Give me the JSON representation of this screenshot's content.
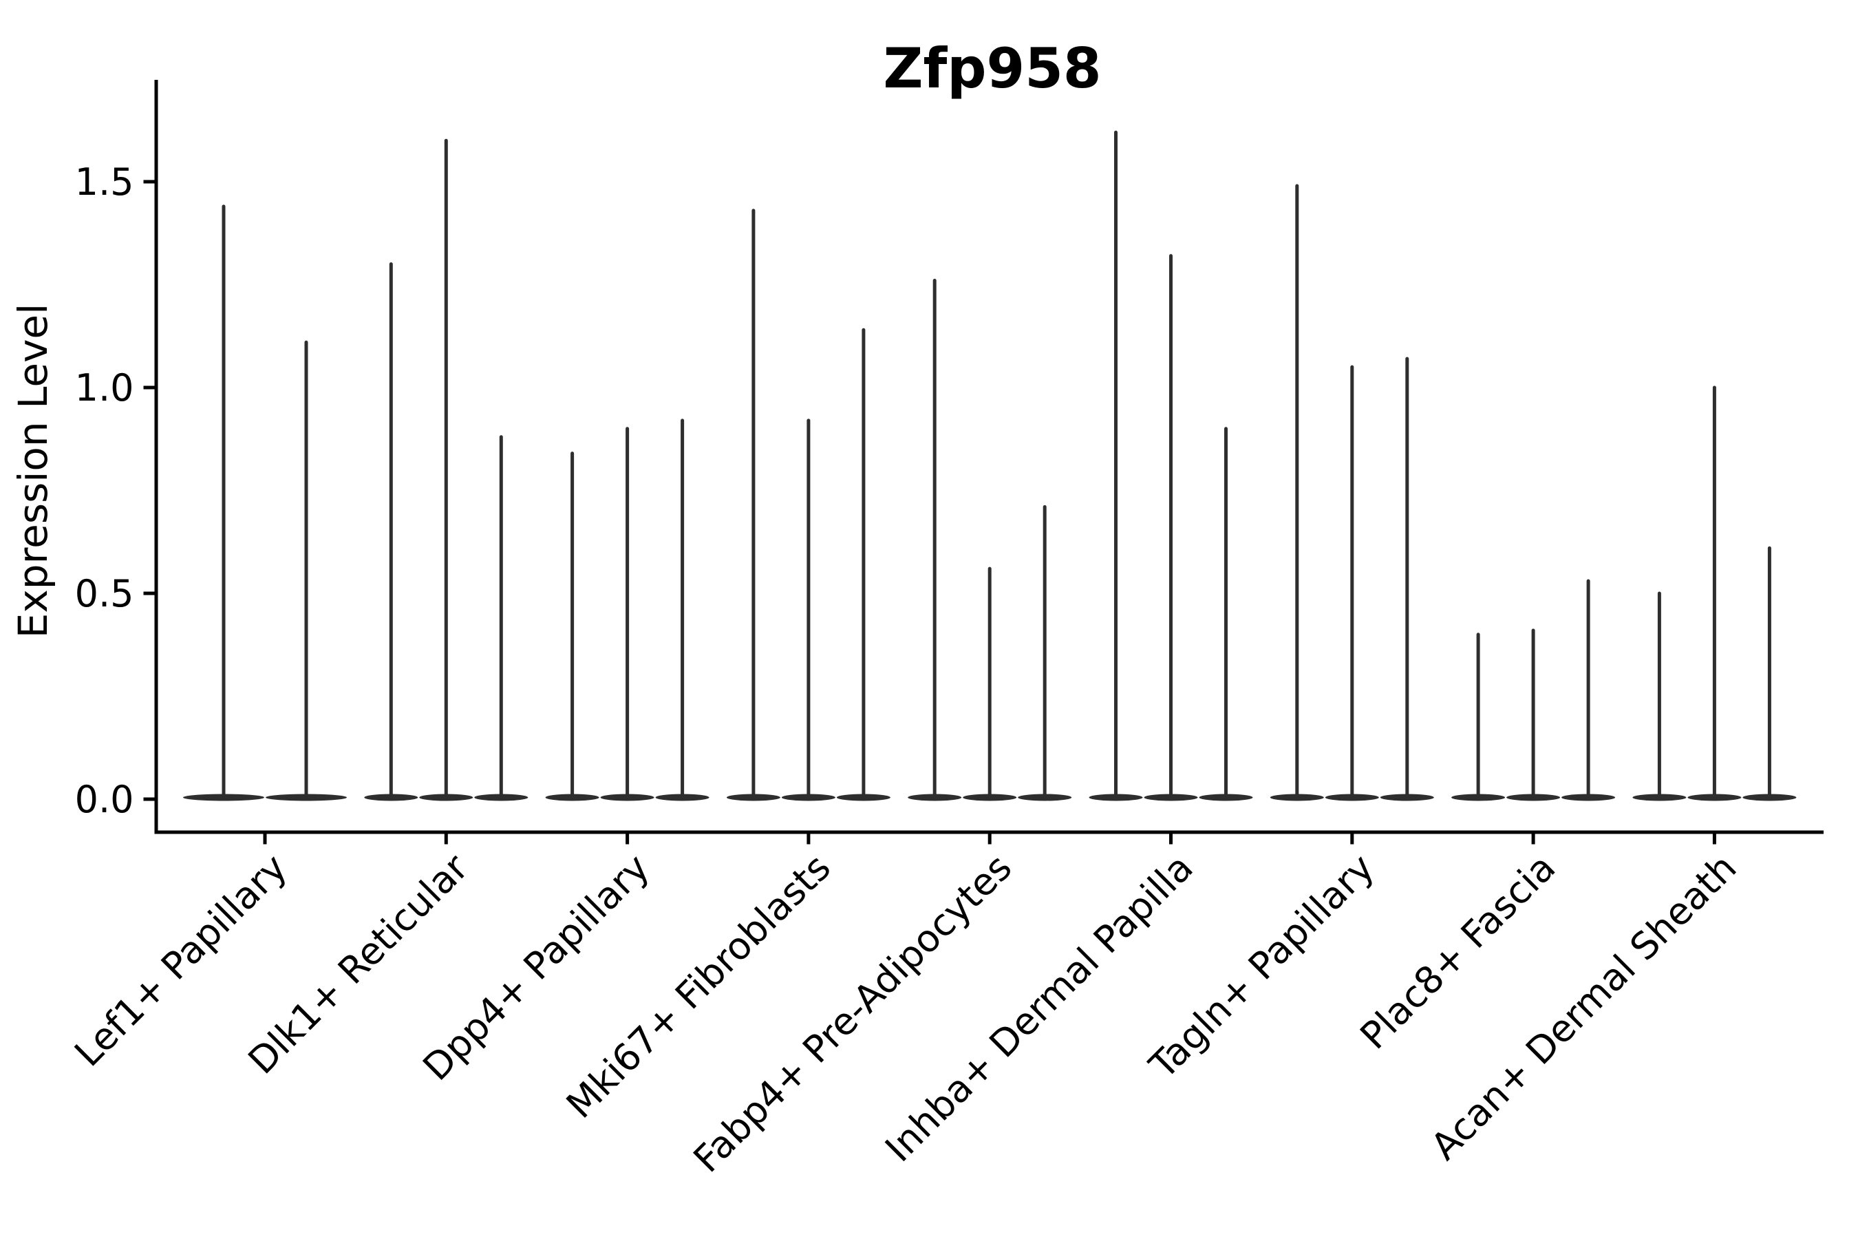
{
  "chart_data": {
    "type": "violin",
    "title": "Zfp958",
    "xlabel": "",
    "ylabel": "Expression Level",
    "yticks": [
      "0.0",
      "0.5",
      "1.0",
      "1.5"
    ],
    "ytick_values": [
      0.0,
      0.5,
      1.0,
      1.5
    ],
    "ylim": [
      0.0,
      1.75
    ],
    "grid": false,
    "legend": "none",
    "categories": [
      "Lef1+ Papillary",
      "Dlk1+ Reticular",
      "Dpp4+ Papillary",
      "Mki67+ Fibroblasts",
      "Fabp4+ Pre-Adipocytes",
      "Inhba+ Dermal Papilla",
      "Tagln+ Papillary",
      "Plac8+ Fascia",
      "Acan+ Dermal Sheath"
    ],
    "groups": [
      {
        "category": "Lef1+ Papillary",
        "violin_maxes": [
          1.44,
          1.11
        ]
      },
      {
        "category": "Dlk1+ Reticular",
        "violin_maxes": [
          1.3,
          1.6,
          0.88
        ]
      },
      {
        "category": "Dpp4+ Papillary",
        "violin_maxes": [
          0.84,
          0.9,
          0.92
        ]
      },
      {
        "category": "Mki67+ Fibroblasts",
        "violin_maxes": [
          1.43,
          0.92,
          1.14
        ]
      },
      {
        "category": "Fabp4+ Pre-Adipocytes",
        "violin_maxes": [
          1.26,
          0.56,
          0.71
        ]
      },
      {
        "category": "Inhba+ Dermal Papilla",
        "violin_maxes": [
          1.62,
          1.32,
          0.9
        ]
      },
      {
        "category": "Tagln+ Papillary",
        "violin_maxes": [
          1.49,
          1.05,
          1.07
        ]
      },
      {
        "category": "Plac8+ Fascia",
        "violin_maxes": [
          0.4,
          0.41,
          0.53
        ]
      },
      {
        "category": "Acan+ Dermal Sheath",
        "violin_maxes": [
          0.5,
          1.0,
          0.61
        ]
      }
    ],
    "note": "Each violin is a near-zero-width KDE: a flat base at expression 0 with a thin spike up to the max expression value.",
    "colors": {
      "violin": "#2e2e2e",
      "axis": "#000000",
      "text": "#000000",
      "background": "#ffffff"
    }
  }
}
